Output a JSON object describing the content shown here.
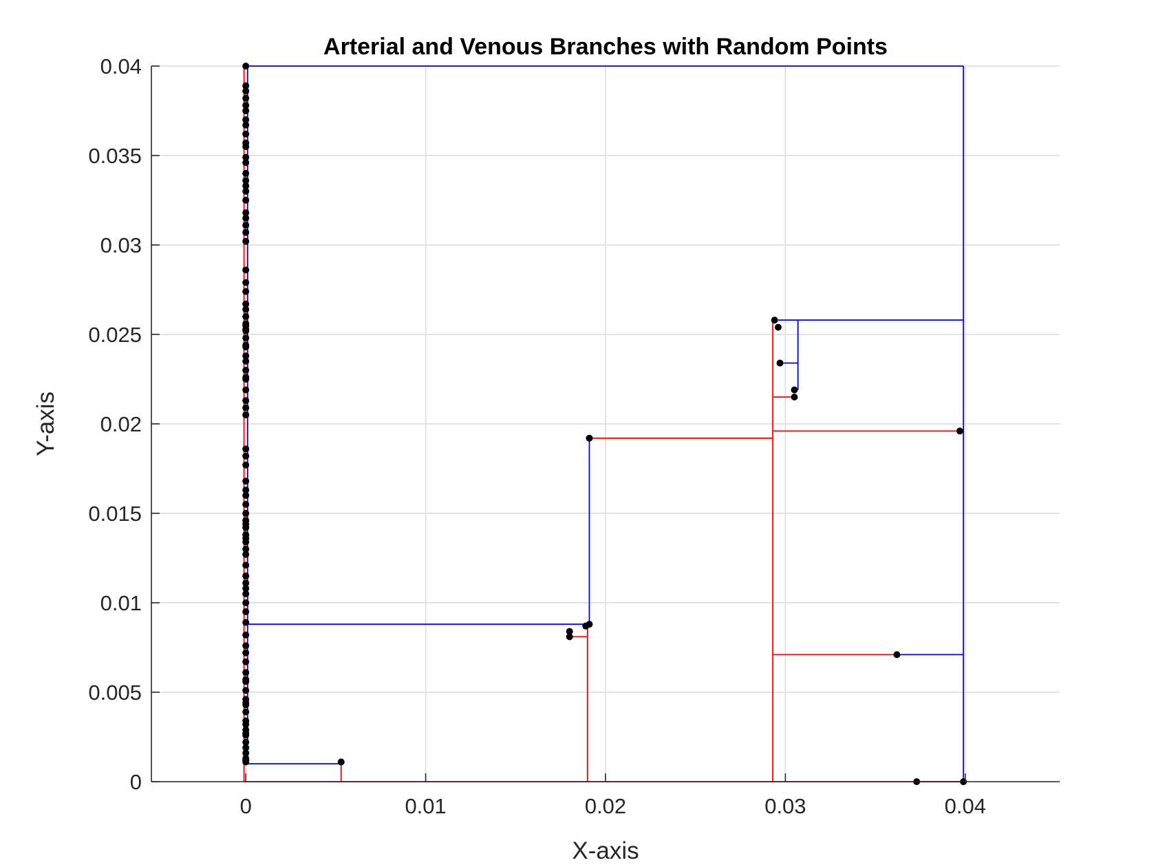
{
  "chart_data": {
    "type": "line",
    "title": "Arterial and Venous Branches with Random Points",
    "xlabel": "X-axis",
    "ylabel": "Y-axis",
    "xlim": [
      -0.00525,
      0.04525
    ],
    "ylim": [
      0,
      0.04
    ],
    "xticks": [
      {
        "value": 0,
        "label": "0"
      },
      {
        "value": 0.01,
        "label": "0.01"
      },
      {
        "value": 0.02,
        "label": "0.02"
      },
      {
        "value": 0.03,
        "label": "0.03"
      },
      {
        "value": 0.04,
        "label": "0.04"
      }
    ],
    "yticks": [
      {
        "value": 0,
        "label": "0"
      },
      {
        "value": 0.005,
        "label": "0.005"
      },
      {
        "value": 0.01,
        "label": "0.01"
      },
      {
        "value": 0.015,
        "label": "0.015"
      },
      {
        "value": 0.02,
        "label": "0.02"
      },
      {
        "value": 0.025,
        "label": "0.025"
      },
      {
        "value": 0.03,
        "label": "0.03"
      },
      {
        "value": 0.035,
        "label": "0.035"
      },
      {
        "value": 0.04,
        "label": "0.04"
      }
    ],
    "grid": true,
    "series": [
      {
        "color": "#0000ff",
        "segments": [
          [
            [
              0,
              0.04
            ],
            [
              0.0399,
              0.04
            ]
          ],
          [
            [
              0.0399,
              0.04
            ],
            [
              0.0399,
              0
            ]
          ],
          [
            [
              0.0372,
              0
            ],
            [
              0.0399,
              0
            ]
          ],
          [
            [
              0.0362,
              0.0071
            ],
            [
              0.0399,
              0.0071
            ]
          ],
          [
            [
              0.0296,
              0.0258
            ],
            [
              0.0399,
              0.0258
            ]
          ],
          [
            [
              0.0307,
              0.0258
            ],
            [
              0.0307,
              0.0219
            ]
          ],
          [
            [
              0.0297,
              0.0234
            ],
            [
              0.0307,
              0.0234
            ]
          ],
          [
            [
              0.0001,
              0.0088
            ],
            [
              0.0191,
              0.0088
            ]
          ],
          [
            [
              0.0191,
              0.0192
            ],
            [
              0.0191,
              0.0088
            ]
          ],
          [
            [
              0.0001,
              0.001
            ],
            [
              0.0053,
              0.001
            ]
          ],
          [
            [
              0.0001,
              0.04
            ],
            [
              0.0001,
              0.001
            ]
          ]
        ]
      },
      {
        "color": "#ff0000",
        "segments": [
          [
            [
              -0.0001,
              0.04
            ],
            [
              -0.0001,
              0
            ]
          ],
          [
            [
              -0.0001,
              0
            ],
            [
              0.0398,
              0
            ]
          ],
          [
            [
              0.0053,
              0.001
            ],
            [
              0.0053,
              0
            ]
          ],
          [
            [
              0.019,
              0.0088
            ],
            [
              0.019,
              0
            ]
          ],
          [
            [
              0.018,
              0.0081
            ],
            [
              0.019,
              0.0081
            ]
          ],
          [
            [
              0.019,
              0.0192
            ],
            [
              0.0293,
              0.0192
            ]
          ],
          [
            [
              0.0293,
              0.0258
            ],
            [
              0.0293,
              0
            ]
          ],
          [
            [
              0.0293,
              0.0196
            ],
            [
              0.0397,
              0.0196
            ]
          ],
          [
            [
              0.0293,
              0.0215
            ],
            [
              0.0305,
              0.0215
            ]
          ],
          [
            [
              0.0293,
              0.0071
            ],
            [
              0.0362,
              0.0071
            ]
          ]
        ]
      }
    ],
    "points": {
      "color": "#000000",
      "x": [
        0,
        0,
        0,
        0,
        0,
        0,
        0,
        0,
        0,
        0,
        0,
        0,
        0,
        0,
        0,
        0,
        0,
        0,
        0,
        0,
        0,
        0,
        0,
        0,
        0,
        0,
        0,
        0,
        0,
        0,
        0,
        0,
        0,
        0,
        0,
        0,
        0,
        0,
        0,
        0,
        0,
        0,
        0,
        0,
        0,
        0,
        0,
        0,
        0,
        0,
        0,
        0,
        0,
        0,
        0,
        0,
        0,
        0,
        0,
        0,
        0,
        0,
        0,
        0,
        0,
        0,
        0,
        0,
        0,
        0,
        0,
        0,
        0,
        0,
        0,
        0,
        0,
        0,
        0,
        0,
        0,
        0,
        0,
        0,
        0,
        0,
        0,
        0,
        0,
        0,
        0,
        0,
        0,
        0.0053,
        0.018,
        0.018,
        0.0189,
        0.0191,
        0.0191,
        0.0294,
        0.0296,
        0.0297,
        0.0305,
        0.0305,
        0.0397,
        0.0362,
        0.0373,
        0.0399
      ],
      "y": [
        0.04,
        0.0389,
        0.0386,
        0.0382,
        0.0378,
        0.0375,
        0.037,
        0.0367,
        0.0362,
        0.0357,
        0.0355,
        0.0349,
        0.0346,
        0.034,
        0.0336,
        0.0333,
        0.033,
        0.0325,
        0.0318,
        0.0315,
        0.0311,
        0.0307,
        0.0302,
        0.0286,
        0.0279,
        0.0274,
        0.0267,
        0.0264,
        0.026,
        0.0255,
        0.0252,
        0.0248,
        0.0244,
        0.0238,
        0.0235,
        0.023,
        0.0226,
        0.0219,
        0.0213,
        0.0209,
        0.0205,
        0.0186,
        0.0182,
        0.0177,
        0.0168,
        0.0163,
        0.016,
        0.0155,
        0.015,
        0.0146,
        0.0142,
        0.0138,
        0.0134,
        0.013,
        0.0127,
        0.0121,
        0.0115,
        0.0111,
        0.0108,
        0.0105,
        0.01,
        0.0095,
        0.0089,
        0.0082,
        0.0076,
        0.0072,
        0.0067,
        0.0061,
        0.0056,
        0.0051,
        0.0046,
        0.0043,
        0.0039,
        0.0034,
        0.0032,
        0.0029,
        0.0026,
        0.0022,
        0.0019,
        0.0016,
        0.0013,
        0.0011,
        0.0012,
        0.0225,
        0.0243,
        0.0253,
        0.0256,
        0.0144,
        0.0136,
        0.0057,
        0.0027,
        0.0012,
        0.0044,
        0.0011,
        0.0084,
        0.0081,
        0.0087,
        0.0088,
        0.0192,
        0.0258,
        0.0254,
        0.0234,
        0.0219,
        0.0215,
        0.0196,
        0.0071,
        0,
        0
      ]
    }
  }
}
